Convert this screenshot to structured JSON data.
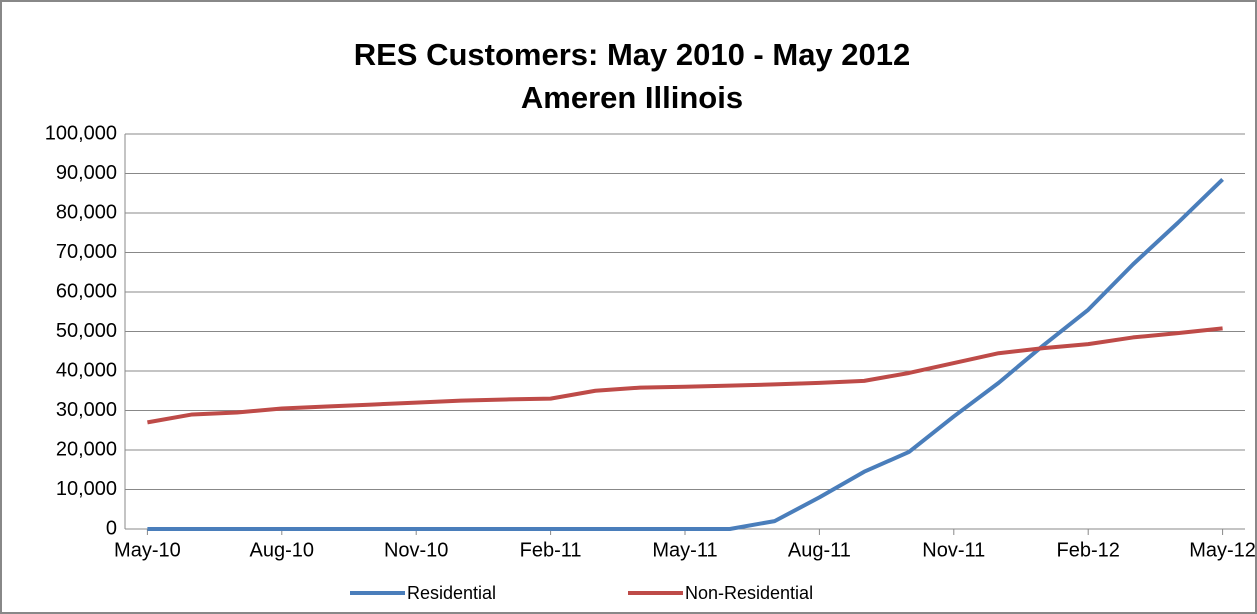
{
  "chart_data": {
    "type": "line",
    "title": "RES Customers:  May 2010 - May 2012",
    "subtitle": "Ameren Illinois",
    "categories": [
      "May-10",
      null,
      null,
      "Aug-10",
      null,
      null,
      "Nov-10",
      null,
      null,
      "Feb-11",
      null,
      null,
      "May-11",
      null,
      null,
      "Aug-11",
      null,
      null,
      "Nov-11",
      null,
      null,
      "Feb-12",
      null,
      null,
      "May-12"
    ],
    "series": [
      {
        "name": "Residential",
        "color": "#4a7ebb",
        "values": [
          0,
          0,
          0,
          0,
          0,
          0,
          0,
          0,
          0,
          0,
          0,
          0,
          0,
          0,
          2000,
          8000,
          14500,
          19500,
          28500,
          37000,
          46500,
          55500,
          67000,
          77500,
          88500
        ]
      },
      {
        "name": "Non-Residential",
        "color": "#be4b48",
        "values": [
          27000,
          29000,
          29500,
          30500,
          31000,
          31500,
          32000,
          32500,
          32800,
          33000,
          35000,
          35800,
          36000,
          36300,
          36600,
          37000,
          37500,
          39500,
          42000,
          44500,
          45800,
          46800,
          48500,
          49600,
          50800
        ]
      }
    ],
    "ylim": [
      0,
      100000
    ],
    "yticks": [
      0,
      {
        "value": 10000,
        "label": "10,000"
      },
      {
        "value": 20000,
        "label": "20,000"
      },
      {
        "value": 30000,
        "label": "30,000"
      },
      {
        "value": 40000,
        "label": "40,000"
      },
      {
        "value": 50000,
        "label": "50,000"
      },
      {
        "value": 60000,
        "label": "60,000"
      },
      {
        "value": 70000,
        "label": "70,000"
      },
      {
        "value": 80000,
        "label": "80,000"
      },
      {
        "value": 90000,
        "label": "90,000"
      },
      {
        "value": 100000,
        "label": "100,000"
      }
    ],
    "grid": true,
    "legend": "bottom"
  }
}
